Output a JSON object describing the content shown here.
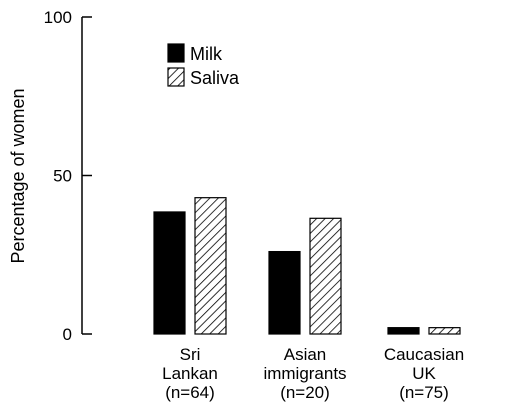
{
  "chart_data": {
    "type": "bar",
    "categories": [
      {
        "lines": [
          "Sri",
          "Lankan",
          "(n=64)"
        ]
      },
      {
        "lines": [
          "Asian",
          "immigrants",
          "(n=20)"
        ]
      },
      {
        "lines": [
          "Caucasian",
          "UK",
          "(n=75)"
        ]
      }
    ],
    "series": [
      {
        "name": "Milk",
        "values": [
          38.5,
          26,
          2
        ],
        "fill": "solid",
        "color": "#000000"
      },
      {
        "name": "Saliva",
        "values": [
          43,
          36.5,
          2
        ],
        "fill": "hatched",
        "color": "#000000"
      }
    ],
    "ylabel": "Percentage of women",
    "ylim": [
      0,
      100
    ],
    "yticks": [
      0,
      50,
      100
    ],
    "grid": false,
    "legend_position": "top-left"
  }
}
